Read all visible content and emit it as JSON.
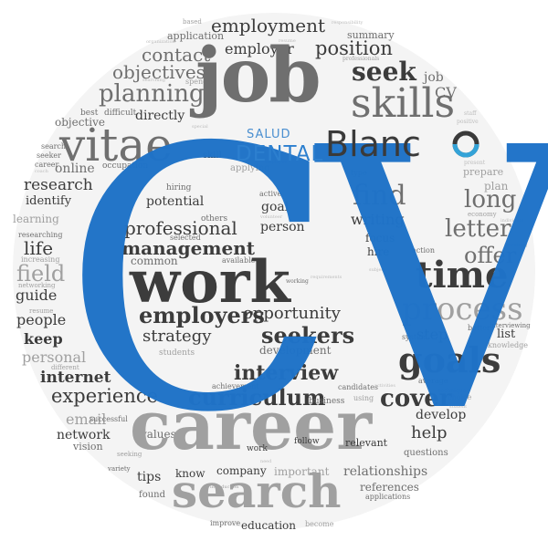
{
  "words": {
    "cv_big": "CV",
    "employment": "employment",
    "application": "application",
    "summary": "summary",
    "based": "based",
    "responsibility": "responsibility",
    "organization": "organization",
    "resume_top": "resume",
    "contact": "contact",
    "employer": "employer",
    "position": "position",
    "professionals": "professionals",
    "objectives": "objectives",
    "seek": "seek",
    "job_small": "job",
    "spend": "spend",
    "searching": "searching",
    "planning": "planning",
    "job_big": "job",
    "skills": "skills",
    "cv_small": "CV",
    "best": "best",
    "difficult": "difficult",
    "directly": "directly",
    "vitae": "vitae",
    "objective": "objective",
    "staff": "staff",
    "positive": "positive",
    "search_small": "search",
    "seeker": "seeker",
    "career_small": "career",
    "coach": "coach",
    "online": "online",
    "occupation": "occupation",
    "skill": "skill",
    "applying": "applying",
    "employee": "employee",
    "type": "type",
    "present": "present",
    "prepare": "prepare",
    "plan": "plan",
    "research": "research",
    "identify": "identify",
    "hiring": "hiring",
    "find": "find",
    "long": "long",
    "learning": "learning",
    "potential": "potential",
    "active": "active",
    "goal_small": "goal",
    "economy": "economy",
    "individual": "individual",
    "writing": "writing",
    "letter": "letter",
    "researching": "researching",
    "professional": "professional",
    "others": "others",
    "person": "person",
    "volunteer": "volunteer",
    "life": "life",
    "increasing": "increasing",
    "selected": "selected",
    "focus": "focus",
    "offer": "offer",
    "hire": "hire",
    "action": "action",
    "recruiting": "recruiting",
    "management": "management",
    "available": "available",
    "common": "common",
    "field": "field",
    "networking": "networking",
    "work_big": "work",
    "working": "working",
    "time": "time",
    "guide": "guide",
    "resume_small": "resume",
    "requirements": "requirements",
    "subject": "subject",
    "people": "people",
    "employers": "employers",
    "opportunity": "opportunity",
    "process": "process",
    "keep": "keep",
    "strategy": "strategy",
    "seekers": "seekers",
    "step": "step",
    "better": "better",
    "interviewing": "interviewing",
    "list": "list",
    "personal": "personal",
    "students": "students",
    "development": "development",
    "system": "system",
    "knowledge": "knowledge",
    "goals": "goals",
    "internet": "internet",
    "interview": "interview",
    "achievement": "achievement",
    "average": "average",
    "experience": "experience",
    "curriculum": "curriculum",
    "business": "business",
    "candidates": "candidates",
    "using": "using",
    "activities": "activities",
    "develop": "develop",
    "technique": "technique",
    "cover": "cover",
    "email": "email",
    "successful": "successful",
    "choice": "choice",
    "student": "student",
    "network": "network",
    "vision": "vision",
    "values": "values",
    "career_big": "career",
    "follow": "follow",
    "relevant": "relevant",
    "help": "help",
    "questions": "questions",
    "seeking": "seeking",
    "work_small": "work",
    "important": "important",
    "relationships": "relationships",
    "variety": "variety",
    "tips": "tips",
    "know": "know",
    "company": "company",
    "need": "need",
    "references": "references",
    "found": "found",
    "search_big": "search",
    "applications": "applications",
    "improve": "improve",
    "education": "education",
    "become": "become",
    "introduction": "introduction",
    "different": "different",
    "special": "special"
  },
  "logo": {
    "salud": "SALUD",
    "dental": "DENTAL",
    "blanc": "Blanc"
  },
  "colors": {
    "cv_blue": "#1f73c8",
    "logo_accent": "#34a3d8",
    "text_dark": "#3c3c3c",
    "text_mid": "#6f6f6f",
    "text_light": "#a0a0a0"
  }
}
